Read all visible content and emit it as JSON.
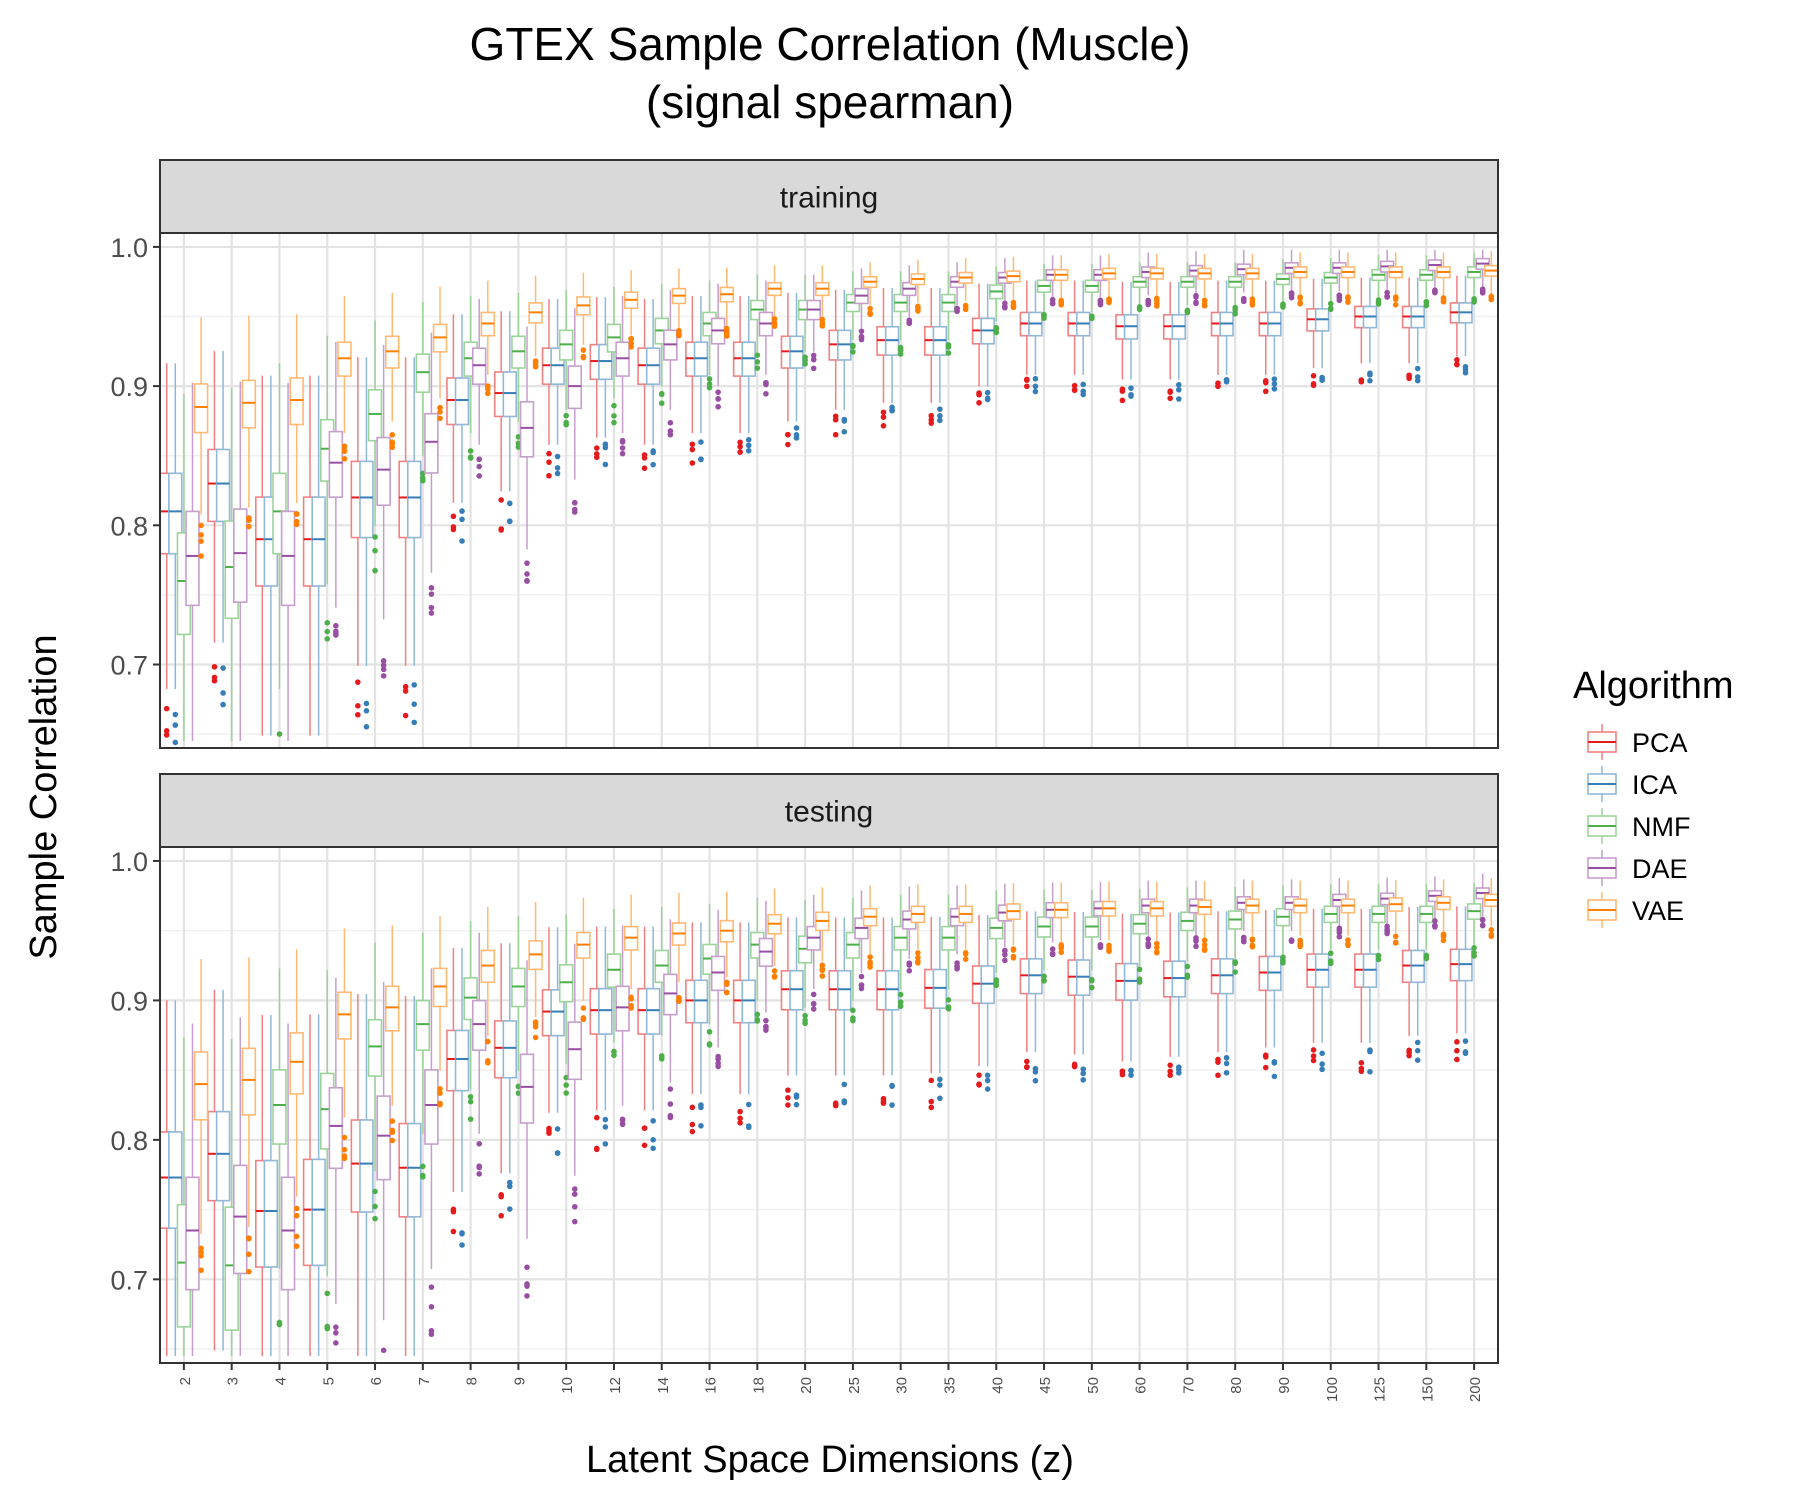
{
  "chart_data": {
    "type": "box",
    "title": "GTEX Sample Correlation (Muscle)",
    "subtitle": "(signal spearman)",
    "xlabel": "Latent Space Dimensions (z)",
    "ylabel": "Sample Correlation",
    "ylim": [
      0.64,
      1.01
    ],
    "yticks": [
      0.7,
      0.8,
      0.9,
      1.0
    ],
    "ytick_labels": [
      "0.7",
      "0.8",
      "0.9",
      "1.0"
    ],
    "grid": true,
    "legend": {
      "title": "Algorithm",
      "position": "right"
    },
    "categories": [
      "2",
      "3",
      "4",
      "5",
      "6",
      "7",
      "8",
      "9",
      "10",
      "12",
      "14",
      "16",
      "18",
      "20",
      "25",
      "30",
      "35",
      "40",
      "45",
      "50",
      "60",
      "70",
      "80",
      "90",
      "100",
      "125",
      "150",
      "200"
    ],
    "series": [
      {
        "name": "PCA",
        "color": "#E41A1C"
      },
      {
        "name": "ICA",
        "color": "#377EB8"
      },
      {
        "name": "NMF",
        "color": "#4DAF4A"
      },
      {
        "name": "DAE",
        "color": "#984EA3"
      },
      {
        "name": "VAE",
        "color": "#FF7F00"
      }
    ],
    "panels": [
      {
        "label": "training",
        "medians": {
          "PCA": [
            0.81,
            0.83,
            0.79,
            0.79,
            0.82,
            0.82,
            0.89,
            0.895,
            0.915,
            0.918,
            0.915,
            0.92,
            0.92,
            0.925,
            0.93,
            0.933,
            0.933,
            0.94,
            0.945,
            0.945,
            0.943,
            0.943,
            0.945,
            0.945,
            0.948,
            0.95,
            0.95,
            0.953
          ],
          "ICA": [
            0.81,
            0.83,
            0.79,
            0.79,
            0.82,
            0.82,
            0.89,
            0.895,
            0.915,
            0.918,
            0.915,
            0.92,
            0.92,
            0.925,
            0.93,
            0.933,
            0.933,
            0.94,
            0.945,
            0.945,
            0.943,
            0.943,
            0.945,
            0.945,
            0.948,
            0.95,
            0.95,
            0.953
          ],
          "NMF": [
            0.76,
            0.77,
            0.81,
            0.855,
            0.88,
            0.91,
            0.92,
            0.925,
            0.93,
            0.935,
            0.94,
            0.945,
            0.955,
            0.955,
            0.96,
            0.96,
            0.96,
            0.968,
            0.972,
            0.972,
            0.975,
            0.975,
            0.975,
            0.977,
            0.978,
            0.98,
            0.98,
            0.982
          ],
          "DAE": [
            0.778,
            0.78,
            0.778,
            0.845,
            0.84,
            0.86,
            0.915,
            0.87,
            0.9,
            0.92,
            0.93,
            0.94,
            0.945,
            0.955,
            0.965,
            0.97,
            0.975,
            0.978,
            0.98,
            0.98,
            0.982,
            0.983,
            0.984,
            0.985,
            0.985,
            0.986,
            0.987,
            0.988
          ],
          "VAE": [
            0.885,
            0.888,
            0.89,
            0.92,
            0.925,
            0.935,
            0.945,
            0.953,
            0.958,
            0.962,
            0.965,
            0.966,
            0.97,
            0.97,
            0.975,
            0.977,
            0.978,
            0.979,
            0.98,
            0.981,
            0.981,
            0.981,
            0.981,
            0.982,
            0.982,
            0.982,
            0.982,
            0.983
          ]
        }
      },
      {
        "label": "testing",
        "medians": {
          "PCA": [
            0.773,
            0.79,
            0.749,
            0.75,
            0.783,
            0.78,
            0.858,
            0.866,
            0.892,
            0.893,
            0.893,
            0.9,
            0.9,
            0.908,
            0.908,
            0.908,
            0.909,
            0.912,
            0.918,
            0.917,
            0.914,
            0.916,
            0.918,
            0.92,
            0.922,
            0.922,
            0.925,
            0.926
          ],
          "ICA": [
            0.773,
            0.79,
            0.749,
            0.75,
            0.783,
            0.78,
            0.858,
            0.866,
            0.892,
            0.893,
            0.893,
            0.9,
            0.9,
            0.908,
            0.908,
            0.908,
            0.909,
            0.912,
            0.918,
            0.917,
            0.914,
            0.916,
            0.918,
            0.92,
            0.922,
            0.922,
            0.925,
            0.926
          ],
          "NMF": [
            0.712,
            0.71,
            0.825,
            0.822,
            0.867,
            0.883,
            0.902,
            0.91,
            0.913,
            0.922,
            0.925,
            0.93,
            0.94,
            0.937,
            0.94,
            0.945,
            0.945,
            0.952,
            0.953,
            0.953,
            0.955,
            0.957,
            0.958,
            0.96,
            0.962,
            0.962,
            0.962,
            0.964
          ],
          "DAE": [
            0.735,
            0.745,
            0.735,
            0.81,
            0.803,
            0.825,
            0.883,
            0.838,
            0.865,
            0.895,
            0.905,
            0.92,
            0.935,
            0.945,
            0.952,
            0.958,
            0.96,
            0.963,
            0.965,
            0.966,
            0.968,
            0.968,
            0.97,
            0.97,
            0.972,
            0.973,
            0.975,
            0.977
          ],
          "VAE": [
            0.84,
            0.843,
            0.856,
            0.89,
            0.895,
            0.91,
            0.925,
            0.933,
            0.94,
            0.945,
            0.948,
            0.95,
            0.955,
            0.957,
            0.96,
            0.962,
            0.962,
            0.964,
            0.965,
            0.966,
            0.966,
            0.967,
            0.968,
            0.968,
            0.968,
            0.969,
            0.97,
            0.972
          ]
        }
      }
    ]
  }
}
